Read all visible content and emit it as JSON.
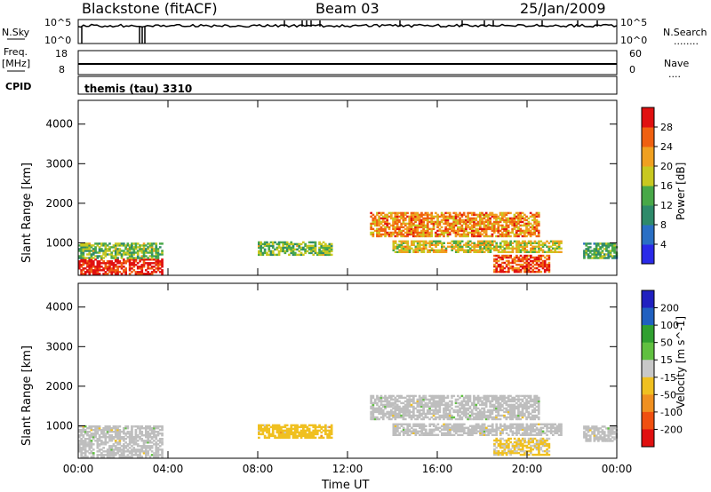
{
  "header": {
    "station": "Blackstone (fitACF)",
    "beam": "Beam 03",
    "date": "25/Jan/2009"
  },
  "nsky_panel": {
    "left_label": "N.Sky",
    "left_ticks": [
      "10^5",
      "10^0"
    ],
    "right_ticks": [
      "10^5",
      "10^0"
    ],
    "right_label": "N.Search",
    "right_dots": "........"
  },
  "freq_panel": {
    "left_label_1": "Freq.",
    "left_label_2": "[MHz]",
    "left_ticks": [
      "18",
      "8"
    ],
    "right_ticks": [
      "60",
      "0"
    ],
    "right_label": "Nave",
    "right_dots": "...."
  },
  "cpid": {
    "label": "CPID",
    "value": "themis (tau) 3310"
  },
  "colors": {
    "power_scale": [
      "#2a2ae8",
      "#2a6fc4",
      "#2e8a6a",
      "#48a848",
      "#c8c820",
      "#f0a020",
      "#f06010",
      "#e01010"
    ],
    "velocity_scale": [
      "#2020c0",
      "#2060c0",
      "#30a030",
      "#60c040",
      "#c8c8c8",
      "#f0c020",
      "#f09020",
      "#f05010",
      "#e01010"
    ],
    "ground_scatter": "#bebebe"
  },
  "chart_data": [
    {
      "type": "heatmap",
      "name_text": "power-panel",
      "ylabel": "Slant Range [km]",
      "xlabel": "",
      "x_ticks": [
        "00:00",
        "04:00",
        "08:00",
        "12:00",
        "16:00",
        "20:00",
        "00:00"
      ],
      "y_ticks": [
        "1000",
        "2000",
        "3000",
        "4000"
      ],
      "xlim_hours": [
        0,
        24
      ],
      "ylim_km": [
        180,
        4600
      ],
      "colorbar": {
        "label": "Power [dB]",
        "ticks": [
          "4",
          "8",
          "12",
          "16",
          "20",
          "24",
          "28"
        ],
        "range": [
          0,
          30
        ]
      },
      "regions": [
        {
          "t0": 0.0,
          "t1": 3.7,
          "r0": 200,
          "r1": 600,
          "value": 28
        },
        {
          "t0": 0.0,
          "t1": 3.7,
          "r0": 600,
          "r1": 1000,
          "value": 14
        },
        {
          "t0": 8.0,
          "t1": 11.3,
          "r0": 680,
          "r1": 1000,
          "value": 14
        },
        {
          "t0": 13.0,
          "t1": 20.5,
          "r0": 1150,
          "r1": 1750,
          "value": 22
        },
        {
          "t0": 14.0,
          "t1": 21.5,
          "r0": 750,
          "r1": 1050,
          "value": 18
        },
        {
          "t0": 18.5,
          "t1": 21.0,
          "r0": 250,
          "r1": 700,
          "value": 26
        },
        {
          "t0": 22.5,
          "t1": 24.0,
          "r0": 600,
          "r1": 1000,
          "value": 12
        }
      ]
    },
    {
      "type": "heatmap",
      "name_text": "velocity-panel",
      "ylabel": "Slant Range [km]",
      "xlabel": "Time UT",
      "x_ticks": [
        "00:00",
        "04:00",
        "08:00",
        "12:00",
        "16:00",
        "20:00",
        "00:00"
      ],
      "y_ticks": [
        "1000",
        "2000",
        "3000",
        "4000"
      ],
      "xlim_hours": [
        0,
        24
      ],
      "ylim_km": [
        180,
        4600
      ],
      "colorbar": {
        "label": "Velocity [m s^-1]",
        "ticks": [
          "200",
          "100",
          "50",
          "15",
          "-15",
          "-50",
          "-100",
          "-200"
        ],
        "range": [
          -250,
          250
        ]
      },
      "regions": [
        {
          "t0": 0.0,
          "t1": 3.7,
          "r0": 200,
          "r1": 1000,
          "value": 0
        },
        {
          "t0": 8.0,
          "t1": 11.3,
          "r0": 680,
          "r1": 1000,
          "value": -60
        },
        {
          "t0": 13.0,
          "t1": 20.5,
          "r0": 1150,
          "r1": 1750,
          "value": 0
        },
        {
          "t0": 14.0,
          "t1": 21.5,
          "r0": 750,
          "r1": 1050,
          "value": 0
        },
        {
          "t0": 18.5,
          "t1": 21.0,
          "r0": 250,
          "r1": 700,
          "value": -30
        },
        {
          "t0": 22.5,
          "t1": 24.0,
          "r0": 600,
          "r1": 1000,
          "value": 0
        }
      ]
    }
  ]
}
